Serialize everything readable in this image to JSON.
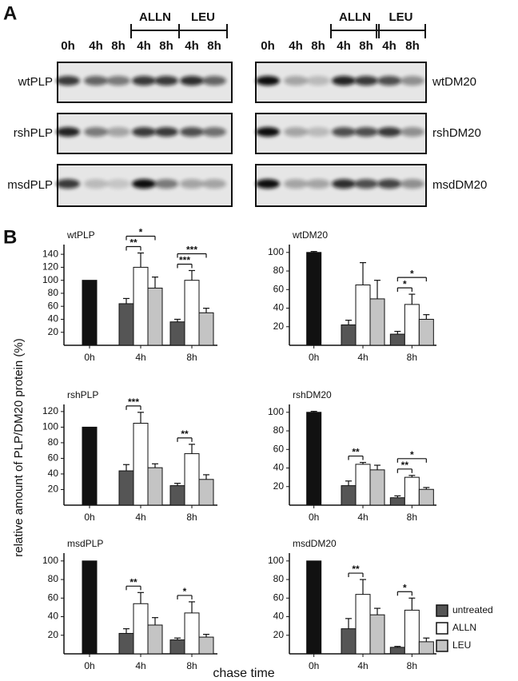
{
  "figure": {
    "panel_a": {
      "label": "A",
      "left": {
        "lanes": [
          "0h",
          "4h",
          "8h",
          "4h",
          "8h",
          "4h",
          "8h"
        ],
        "groups": [
          "ALLN",
          "LEU"
        ],
        "rows": [
          "wtPLP",
          "rshPLP",
          "msdPLP"
        ]
      },
      "right": {
        "lanes": [
          "0h",
          "4h",
          "8h",
          "4h",
          "8h",
          "4h",
          "8h"
        ],
        "groups": [
          "ALLN",
          "LEU"
        ],
        "rows": [
          "wtDM20",
          "rshDM20",
          "msdDM20"
        ]
      }
    },
    "panel_b": {
      "label": "B",
      "y_axis_label": "relative amount of PLP/DM20 protein (%)",
      "x_axis_label": "chase time"
    }
  },
  "chart_data": [
    {
      "type": "bar",
      "title": "wtPLP",
      "categories": [
        "0h",
        "4h",
        "8h"
      ],
      "first_bar_color": "#111111",
      "ylim": [
        0,
        150
      ],
      "yticks": [
        20,
        40,
        60,
        80,
        100,
        120,
        140
      ],
      "series": [
        {
          "name": "untreated",
          "color": "#555555",
          "values": [
            100,
            64,
            36
          ],
          "errors": [
            null,
            8,
            4
          ]
        },
        {
          "name": "ALLN",
          "color": "#ffffff",
          "values": [
            null,
            120,
            100
          ],
          "errors": [
            null,
            22,
            15
          ]
        },
        {
          "name": "LEU",
          "color": "#c4c4c4",
          "values": [
            null,
            88,
            50
          ],
          "errors": [
            null,
            17,
            7
          ]
        }
      ],
      "significance": [
        {
          "category": "4h",
          "between": [
            "untreated",
            "ALLN"
          ],
          "label": "**"
        },
        {
          "category": "4h",
          "between": [
            "untreated",
            "LEU"
          ],
          "label": "*"
        },
        {
          "category": "8h",
          "between": [
            "untreated",
            "ALLN"
          ],
          "label": "***"
        },
        {
          "category": "8h",
          "between": [
            "untreated",
            "LEU"
          ],
          "label": "***"
        }
      ]
    },
    {
      "type": "bar",
      "title": "wtDM20",
      "categories": [
        "0h",
        "4h",
        "8h"
      ],
      "first_bar_color": "#111111",
      "ylim": [
        0,
        105
      ],
      "yticks": [
        20,
        40,
        60,
        80,
        100
      ],
      "series": [
        {
          "name": "untreated",
          "color": "#555555",
          "values": [
            100,
            22,
            12
          ],
          "errors": [
            1,
            5,
            3
          ]
        },
        {
          "name": "ALLN",
          "color": "#ffffff",
          "values": [
            null,
            65,
            44
          ],
          "errors": [
            null,
            24,
            11
          ]
        },
        {
          "name": "LEU",
          "color": "#c4c4c4",
          "values": [
            null,
            50,
            28
          ],
          "errors": [
            null,
            20,
            5
          ]
        }
      ],
      "significance": [
        {
          "category": "8h",
          "between": [
            "untreated",
            "ALLN"
          ],
          "label": "*"
        },
        {
          "category": "8h",
          "between": [
            "untreated",
            "LEU"
          ],
          "label": "*"
        }
      ]
    },
    {
      "type": "bar",
      "title": "rshPLP",
      "categories": [
        "0h",
        "4h",
        "8h"
      ],
      "first_bar_color": "#111111",
      "ylim": [
        0,
        125
      ],
      "yticks": [
        20,
        40,
        60,
        80,
        100,
        120
      ],
      "series": [
        {
          "name": "untreated",
          "color": "#555555",
          "values": [
            100,
            44,
            25
          ],
          "errors": [
            null,
            8,
            3
          ]
        },
        {
          "name": "ALLN",
          "color": "#ffffff",
          "values": [
            null,
            105,
            66
          ],
          "errors": [
            null,
            14,
            12
          ]
        },
        {
          "name": "LEU",
          "color": "#c4c4c4",
          "values": [
            null,
            48,
            33
          ],
          "errors": [
            null,
            5,
            6
          ]
        }
      ],
      "significance": [
        {
          "category": "4h",
          "between": [
            "untreated",
            "ALLN"
          ],
          "label": "***"
        },
        {
          "category": "8h",
          "between": [
            "untreated",
            "ALLN"
          ],
          "label": "**"
        }
      ]
    },
    {
      "type": "bar",
      "title": "rshDM20",
      "categories": [
        "0h",
        "4h",
        "8h"
      ],
      "first_bar_color": "#111111",
      "ylim": [
        0,
        105
      ],
      "yticks": [
        20,
        40,
        60,
        80,
        100
      ],
      "series": [
        {
          "name": "untreated",
          "color": "#555555",
          "values": [
            100,
            21,
            8
          ],
          "errors": [
            1,
            5,
            2
          ]
        },
        {
          "name": "ALLN",
          "color": "#ffffff",
          "values": [
            null,
            44,
            30
          ],
          "errors": [
            null,
            2,
            2
          ]
        },
        {
          "name": "LEU",
          "color": "#c4c4c4",
          "values": [
            null,
            38,
            17
          ],
          "errors": [
            null,
            5,
            2
          ]
        }
      ],
      "significance": [
        {
          "category": "4h",
          "between": [
            "untreated",
            "ALLN"
          ],
          "label": "**"
        },
        {
          "category": "8h",
          "between": [
            "untreated",
            "ALLN"
          ],
          "label": "**"
        },
        {
          "category": "8h",
          "between": [
            "untreated",
            "LEU"
          ],
          "label": "*"
        }
      ]
    },
    {
      "type": "bar",
      "title": "msdPLP",
      "categories": [
        "0h",
        "4h",
        "8h"
      ],
      "first_bar_color": "#111111",
      "ylim": [
        0,
        105
      ],
      "yticks": [
        20,
        40,
        60,
        80,
        100
      ],
      "series": [
        {
          "name": "untreated",
          "color": "#555555",
          "values": [
            100,
            22,
            15
          ],
          "errors": [
            null,
            5,
            2
          ]
        },
        {
          "name": "ALLN",
          "color": "#ffffff",
          "values": [
            null,
            54,
            44
          ],
          "errors": [
            null,
            12,
            12
          ]
        },
        {
          "name": "LEU",
          "color": "#c4c4c4",
          "values": [
            null,
            31,
            18
          ],
          "errors": [
            null,
            8,
            3
          ]
        }
      ],
      "significance": [
        {
          "category": "4h",
          "between": [
            "untreated",
            "ALLN"
          ],
          "label": "**"
        },
        {
          "category": "8h",
          "between": [
            "untreated",
            "ALLN"
          ],
          "label": "*"
        }
      ]
    },
    {
      "type": "bar",
      "title": "msdDM20",
      "categories": [
        "0h",
        "4h",
        "8h"
      ],
      "first_bar_color": "#111111",
      "ylim": [
        0,
        105
      ],
      "yticks": [
        20,
        40,
        60,
        80,
        100
      ],
      "series": [
        {
          "name": "untreated",
          "color": "#555555",
          "values": [
            100,
            27,
            7
          ],
          "errors": [
            null,
            11,
            1
          ]
        },
        {
          "name": "ALLN",
          "color": "#ffffff",
          "values": [
            null,
            64,
            47
          ],
          "errors": [
            null,
            16,
            13
          ]
        },
        {
          "name": "LEU",
          "color": "#c4c4c4",
          "values": [
            null,
            42,
            13
          ],
          "errors": [
            null,
            7,
            4
          ]
        }
      ],
      "significance": [
        {
          "category": "4h",
          "between": [
            "untreated",
            "ALLN"
          ],
          "label": "**"
        },
        {
          "category": "8h",
          "between": [
            "untreated",
            "ALLN"
          ],
          "label": "*"
        }
      ]
    }
  ]
}
